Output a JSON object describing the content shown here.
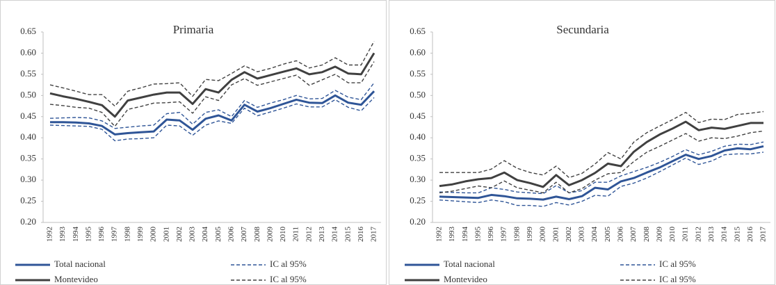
{
  "chart_data": [
    {
      "type": "line",
      "title": "Primaria",
      "categories": [
        "1992",
        "1993",
        "1994",
        "1995",
        "1996",
        "1997",
        "1998",
        "1999",
        "2000",
        "2001",
        "2002",
        "2003",
        "2004",
        "2005",
        "2006",
        "2007",
        "2008",
        "2009",
        "2010",
        "2011",
        "2012",
        "2013",
        "2014",
        "2015",
        "2016",
        "2017"
      ],
      "ylim": [
        0.2,
        0.65
      ],
      "yticks": [
        {
          "value": 0.2,
          "label": "0.20"
        },
        {
          "value": 0.25,
          "label": "0.25"
        },
        {
          "value": 0.3,
          "label": "0.30"
        },
        {
          "value": 0.35,
          "label": "0.35"
        },
        {
          "value": 0.4,
          "label": "0.40"
        },
        {
          "value": 0.45,
          "label": "0.45"
        },
        {
          "value": 0.5,
          "label": "0.50"
        },
        {
          "value": 0.55,
          "label": "0.55"
        },
        {
          "value": 0.6,
          "label": "0.60"
        },
        {
          "value": 0.65,
          "label": "0.65"
        }
      ],
      "series": [
        {
          "name": "Total nacional",
          "color": "#2f5597",
          "dashed": false,
          "values": [
            0.437,
            0.437,
            0.436,
            0.434,
            0.428,
            0.408,
            0.411,
            0.413,
            0.415,
            0.443,
            0.441,
            0.419,
            0.445,
            0.453,
            0.441,
            0.478,
            0.462,
            0.47,
            0.48,
            0.49,
            0.483,
            0.482,
            0.5,
            0.483,
            0.478,
            0.51
          ]
        },
        {
          "name": "IC al 95%",
          "color": "#2f5597",
          "dashed": true,
          "values": [
            0.43,
            0.429,
            0.428,
            0.427,
            0.42,
            0.393,
            0.397,
            0.398,
            0.4,
            0.43,
            0.428,
            0.406,
            0.43,
            0.44,
            0.434,
            0.47,
            0.452,
            0.461,
            0.47,
            0.48,
            0.473,
            0.473,
            0.49,
            0.472,
            0.464,
            0.495
          ]
        },
        {
          "color": "#2f5597",
          "dashed": true,
          "values": [
            0.446,
            0.447,
            0.448,
            0.447,
            0.44,
            0.422,
            0.425,
            0.428,
            0.43,
            0.457,
            0.46,
            0.432,
            0.46,
            0.466,
            0.45,
            0.488,
            0.472,
            0.482,
            0.49,
            0.5,
            0.492,
            0.493,
            0.512,
            0.496,
            0.49,
            0.53
          ]
        },
        {
          "name": "Montevideo",
          "color": "#404040",
          "dashed": false,
          "values": [
            0.505,
            0.498,
            0.492,
            0.485,
            0.477,
            0.45,
            0.488,
            0.495,
            0.502,
            0.507,
            0.507,
            0.48,
            0.515,
            0.507,
            0.537,
            0.555,
            0.54,
            0.548,
            0.556,
            0.564,
            0.55,
            0.555,
            0.568,
            0.552,
            0.55,
            0.6
          ]
        },
        {
          "name": "IC al 95%",
          "color": "#404040",
          "dashed": true,
          "values": [
            0.479,
            0.476,
            0.472,
            0.47,
            0.46,
            0.427,
            0.467,
            0.474,
            0.482,
            0.483,
            0.485,
            0.458,
            0.497,
            0.488,
            0.525,
            0.54,
            0.524,
            0.532,
            0.54,
            0.548,
            0.524,
            0.537,
            0.55,
            0.53,
            0.53,
            0.58
          ]
        },
        {
          "color": "#404040",
          "dashed": true,
          "values": [
            0.525,
            0.518,
            0.51,
            0.502,
            0.502,
            0.475,
            0.51,
            0.518,
            0.527,
            0.528,
            0.53,
            0.498,
            0.538,
            0.535,
            0.552,
            0.57,
            0.556,
            0.564,
            0.574,
            0.582,
            0.565,
            0.572,
            0.589,
            0.572,
            0.572,
            0.628
          ]
        }
      ]
    },
    {
      "type": "line",
      "title": "Secundaria",
      "categories": [
        "1992",
        "1993",
        "1994",
        "1995",
        "1996",
        "1997",
        "1998",
        "1999",
        "2000",
        "2001",
        "2002",
        "2003",
        "2004",
        "2005",
        "2006",
        "2007",
        "2008",
        "2009",
        "2010",
        "2011",
        "2012",
        "2013",
        "2014",
        "2015",
        "2016",
        "2017"
      ],
      "ylim": [
        0.2,
        0.65
      ],
      "yticks": [
        {
          "value": 0.2,
          "label": "0.20"
        },
        {
          "value": 0.25,
          "label": "0.25"
        },
        {
          "value": 0.3,
          "label": "0.30"
        },
        {
          "value": 0.35,
          "label": "0.35"
        },
        {
          "value": 0.4,
          "label": "0.40"
        },
        {
          "value": 0.45,
          "label": "0.45"
        },
        {
          "value": 0.5,
          "label": "0.50"
        },
        {
          "value": 0.55,
          "label": "0.55"
        },
        {
          "value": 0.6,
          "label": "0.60"
        },
        {
          "value": 0.65,
          "label": "0.65"
        }
      ],
      "series": [
        {
          "name": "Total nacional",
          "color": "#2f5597",
          "dashed": false,
          "values": [
            0.261,
            0.26,
            0.259,
            0.258,
            0.265,
            0.262,
            0.257,
            0.256,
            0.254,
            0.261,
            0.255,
            0.262,
            0.282,
            0.278,
            0.297,
            0.305,
            0.318,
            0.33,
            0.345,
            0.36,
            0.35,
            0.357,
            0.37,
            0.375,
            0.373,
            0.38
          ]
        },
        {
          "name": "IC al 95%",
          "color": "#2f5597",
          "dashed": true,
          "values": [
            0.253,
            0.251,
            0.249,
            0.247,
            0.253,
            0.249,
            0.24,
            0.24,
            0.238,
            0.247,
            0.241,
            0.25,
            0.264,
            0.262,
            0.285,
            0.293,
            0.305,
            0.32,
            0.336,
            0.352,
            0.337,
            0.345,
            0.36,
            0.362,
            0.362,
            0.366
          ]
        },
        {
          "color": "#2f5597",
          "dashed": true,
          "values": [
            0.272,
            0.271,
            0.27,
            0.27,
            0.282,
            0.278,
            0.272,
            0.27,
            0.268,
            0.287,
            0.27,
            0.275,
            0.295,
            0.295,
            0.31,
            0.32,
            0.33,
            0.342,
            0.356,
            0.372,
            0.36,
            0.368,
            0.38,
            0.385,
            0.384,
            0.39
          ]
        },
        {
          "name": "Montevideo",
          "color": "#404040",
          "dashed": false,
          "values": [
            0.286,
            0.29,
            0.297,
            0.302,
            0.305,
            0.318,
            0.3,
            0.293,
            0.284,
            0.312,
            0.288,
            0.3,
            0.317,
            0.339,
            0.333,
            0.367,
            0.39,
            0.408,
            0.422,
            0.438,
            0.418,
            0.424,
            0.421,
            0.428,
            0.435,
            0.435
          ]
        },
        {
          "name": "IC al 95%",
          "color": "#404040",
          "dashed": true,
          "values": [
            0.27,
            0.274,
            0.28,
            0.286,
            0.282,
            0.298,
            0.282,
            0.276,
            0.27,
            0.295,
            0.27,
            0.28,
            0.3,
            0.315,
            0.318,
            0.344,
            0.366,
            0.38,
            0.395,
            0.41,
            0.392,
            0.4,
            0.398,
            0.404,
            0.412,
            0.416
          ]
        },
        {
          "color": "#404040",
          "dashed": true,
          "values": [
            0.318,
            0.318,
            0.318,
            0.318,
            0.326,
            0.346,
            0.328,
            0.318,
            0.312,
            0.333,
            0.306,
            0.316,
            0.338,
            0.365,
            0.35,
            0.39,
            0.412,
            0.428,
            0.443,
            0.46,
            0.436,
            0.444,
            0.443,
            0.455,
            0.458,
            0.462
          ]
        }
      ]
    }
  ]
}
